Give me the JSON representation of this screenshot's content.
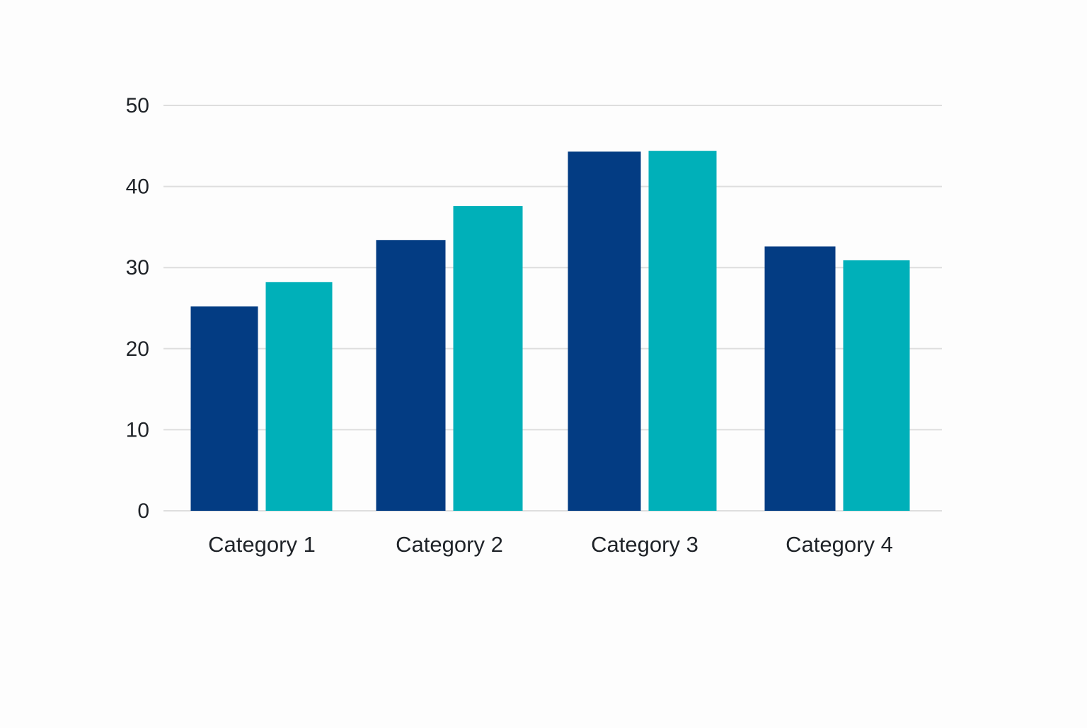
{
  "chart_data": {
    "type": "bar",
    "title": "",
    "xlabel": "",
    "ylabel": "",
    "categories": [
      "Category 1",
      "Category 2",
      "Category 3",
      "Category 4"
    ],
    "series": [
      {
        "values": [
          25.2,
          33.4,
          44.3,
          32.6
        ],
        "color": "#033c83"
      },
      {
        "values": [
          28.2,
          37.6,
          44.4,
          30.9
        ],
        "color": "#00b0b9"
      }
    ],
    "ylim": [
      0,
      50
    ],
    "yticks": [
      0,
      10,
      20,
      30,
      40,
      50
    ],
    "grid": true,
    "legend": "none"
  },
  "colors": {
    "background": "#fdfdfd",
    "gridline": "#dedede",
    "text": "#1f2328"
  }
}
